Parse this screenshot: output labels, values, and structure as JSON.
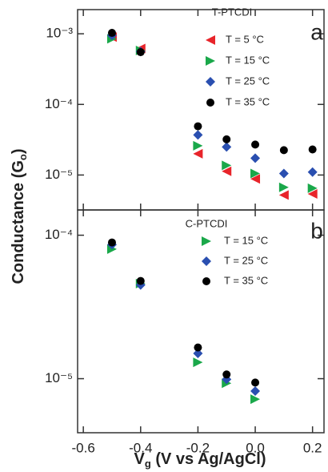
{
  "chart_data": [
    {
      "type": "scatter",
      "panel_label": "a",
      "legend_title": "T-PTCDI",
      "y_label": [
        "Conductance (G",
        "o",
        ")"
      ],
      "y_log": true,
      "ylim": [
        3.2e-06,
        0.0022
      ],
      "yticks": [
        {
          "value": 1e-05,
          "label": "10⁻⁵"
        },
        {
          "value": 0.0001,
          "label": "10⁻⁴"
        },
        {
          "value": 0.001,
          "label": "10⁻³"
        }
      ],
      "x": [
        -0.5,
        -0.4,
        -0.2,
        -0.1,
        0,
        0.1,
        0.2
      ],
      "series": [
        {
          "name": "T = 5 °C",
          "color": "#e8242a",
          "marker": "triangle-left",
          "values": [
            0.0009,
            0.00062,
            2e-05,
            1.13e-05,
            8.8e-06,
            5.2e-06,
            5.4e-06
          ]
        },
        {
          "name": "T = 15 °C",
          "color": "#1aa84a",
          "marker": "triangle-right",
          "values": [
            0.00085,
            0.00058,
            2.6e-05,
            1.37e-05,
            1.05e-05,
            6.7e-06,
            6.5e-06
          ]
        },
        {
          "name": "T = 25 °C",
          "color": "#2a4fb0",
          "marker": "diamond",
          "values": [
            0.00095,
            0.00056,
            3.7e-05,
            2.5e-05,
            1.73e-05,
            1.05e-05,
            1.1e-05
          ]
        },
        {
          "name": "T = 35 °C",
          "color": "#000000",
          "marker": "circle",
          "values": [
            0.00103,
            0.00055,
            4.9e-05,
            3.2e-05,
            2.7e-05,
            2.25e-05,
            2.3e-05
          ]
        }
      ]
    },
    {
      "type": "scatter",
      "panel_label": "b",
      "legend_title": "C-PTCDI",
      "x_label": [
        "V",
        "g",
        " (V vs Ag/AgCl)"
      ],
      "xlim": [
        -0.62,
        0.24
      ],
      "xticks": [
        -0.6,
        -0.4,
        -0.2,
        {
          "value": 0,
          "label": "0.0"
        },
        0.2
      ],
      "y_log": true,
      "ylim": [
        4.2e-06,
        0.00015
      ],
      "yticks": [
        {
          "value": 1e-05,
          "label": "10⁻⁵"
        },
        {
          "value": 0.0001,
          "label": "10⁻⁴"
        }
      ],
      "x": [
        -0.5,
        -0.4,
        -0.2,
        -0.1,
        0
      ],
      "series": [
        {
          "name": "T = 15 °C",
          "color": "#1aa84a",
          "marker": "triangle-right",
          "values": [
            8e-05,
            4.6e-05,
            1.3e-05,
            9.3e-06,
            7.2e-06
          ]
        },
        {
          "name": "T = 25 °C",
          "color": "#2a4fb0",
          "marker": "diamond",
          "values": [
            8.6e-05,
            4.5e-05,
            1.5e-05,
            9.9e-06,
            8.2e-06
          ]
        },
        {
          "name": "T = 35 °C",
          "color": "#000000",
          "marker": "circle",
          "values": [
            8.9e-05,
            4.8e-05,
            1.65e-05,
            1.07e-05,
            9.4e-06
          ]
        }
      ]
    }
  ]
}
